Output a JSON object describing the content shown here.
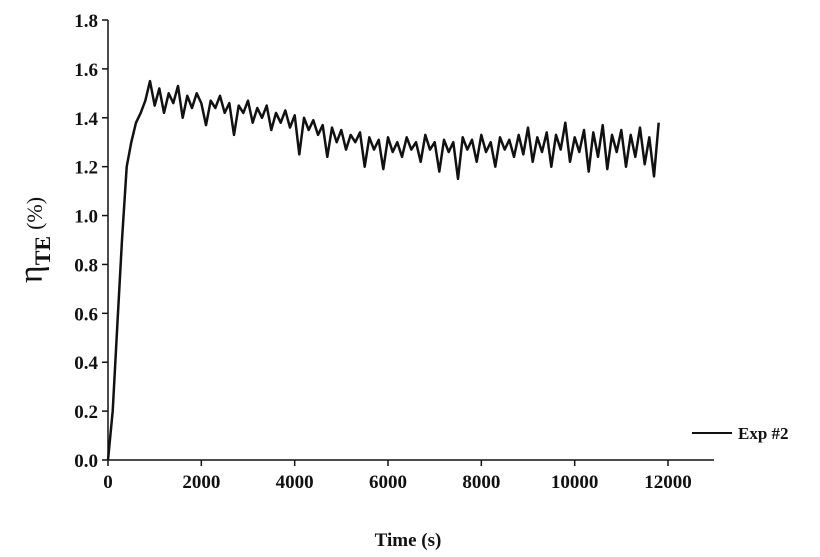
{
  "chart_data": {
    "type": "line",
    "x_label": "Time (s)",
    "y_label": {
      "symbol": "η",
      "subscript": "TE",
      "unit": "(%)"
    },
    "x": [
      0,
      100,
      200,
      300,
      400,
      500,
      600,
      700,
      800,
      900,
      1000,
      1100,
      1200,
      1300,
      1400,
      1500,
      1600,
      1700,
      1800,
      1900,
      2000,
      2100,
      2200,
      2300,
      2400,
      2500,
      2600,
      2700,
      2800,
      2900,
      3000,
      3100,
      3200,
      3300,
      3400,
      3500,
      3600,
      3700,
      3800,
      3900,
      4000,
      4100,
      4200,
      4300,
      4400,
      4500,
      4600,
      4700,
      4800,
      4900,
      5000,
      5100,
      5200,
      5300,
      5400,
      5500,
      5600,
      5700,
      5800,
      5900,
      6000,
      6100,
      6200,
      6300,
      6400,
      6500,
      6600,
      6700,
      6800,
      6900,
      7000,
      7100,
      7200,
      7300,
      7400,
      7500,
      7600,
      7700,
      7800,
      7900,
      8000,
      8100,
      8200,
      8300,
      8400,
      8500,
      8600,
      8700,
      8800,
      8900,
      9000,
      9100,
      9200,
      9300,
      9400,
      9500,
      9600,
      9700,
      9800,
      9900,
      10000,
      10100,
      10200,
      10300,
      10400,
      10500,
      10600,
      10700,
      10800,
      10900,
      11000,
      11100,
      11200,
      11300,
      11400,
      11500,
      11600,
      11700,
      11800
    ],
    "series": [
      {
        "name": "Exp #2",
        "color": "#111111",
        "values": [
          0.0,
          0.2,
          0.55,
          0.9,
          1.2,
          1.3,
          1.38,
          1.42,
          1.47,
          1.55,
          1.45,
          1.52,
          1.42,
          1.5,
          1.46,
          1.53,
          1.4,
          1.49,
          1.44,
          1.5,
          1.46,
          1.37,
          1.47,
          1.44,
          1.49,
          1.42,
          1.46,
          1.33,
          1.45,
          1.42,
          1.47,
          1.38,
          1.44,
          1.4,
          1.45,
          1.35,
          1.42,
          1.38,
          1.43,
          1.36,
          1.41,
          1.25,
          1.4,
          1.35,
          1.39,
          1.33,
          1.37,
          1.24,
          1.36,
          1.3,
          1.35,
          1.27,
          1.33,
          1.3,
          1.34,
          1.2,
          1.32,
          1.27,
          1.31,
          1.19,
          1.32,
          1.26,
          1.3,
          1.24,
          1.32,
          1.27,
          1.3,
          1.22,
          1.33,
          1.27,
          1.3,
          1.18,
          1.31,
          1.26,
          1.3,
          1.15,
          1.32,
          1.27,
          1.31,
          1.22,
          1.33,
          1.26,
          1.3,
          1.2,
          1.32,
          1.27,
          1.31,
          1.24,
          1.33,
          1.25,
          1.36,
          1.22,
          1.32,
          1.26,
          1.34,
          1.2,
          1.33,
          1.27,
          1.38,
          1.22,
          1.32,
          1.26,
          1.35,
          1.18,
          1.34,
          1.24,
          1.37,
          1.19,
          1.33,
          1.26,
          1.35,
          1.2,
          1.33,
          1.24,
          1.36,
          1.21,
          1.32,
          1.16,
          1.38
        ]
      }
    ],
    "xlim": [
      0,
      13000
    ],
    "xticks": [
      0,
      2000,
      4000,
      6000,
      8000,
      10000,
      12000
    ],
    "ylim": [
      0,
      1.8
    ],
    "yticks": [
      {
        "value": 0,
        "label": "0.0"
      },
      0.2,
      0.4,
      0.6,
      0.8,
      {
        "value": 1,
        "label": "1.0"
      },
      1.2,
      1.4,
      1.6,
      1.8
    ],
    "legend": "lower right"
  }
}
